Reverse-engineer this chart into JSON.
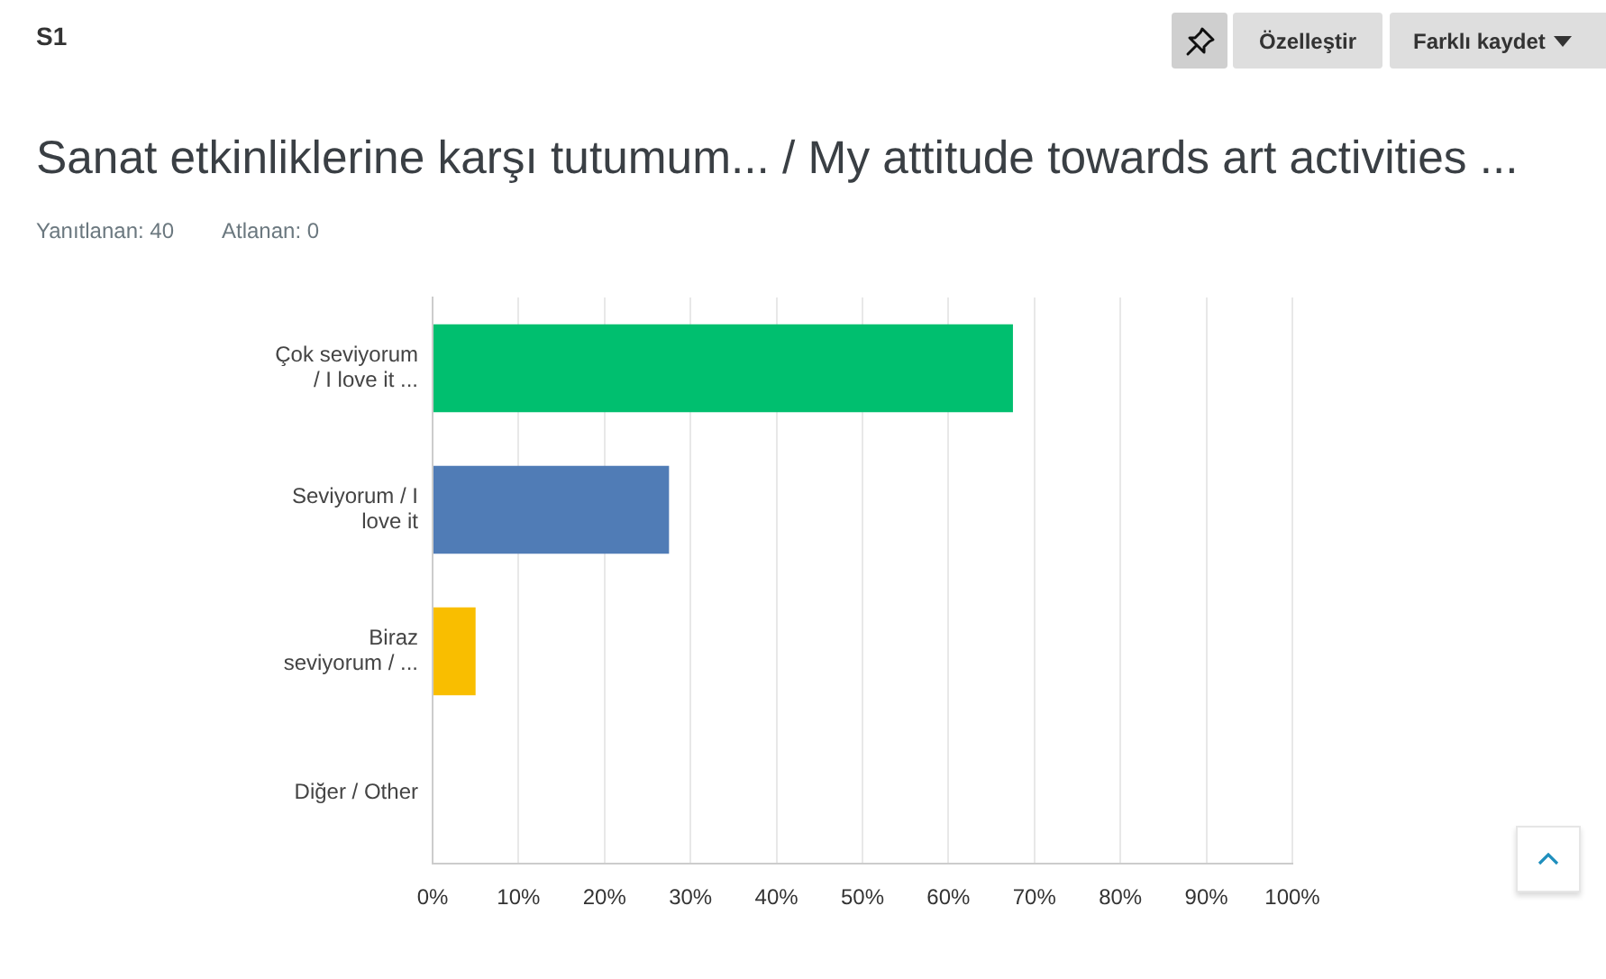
{
  "chart_data": {
    "type": "bar",
    "orientation": "horizontal",
    "title": "Sanat etkinliklerine karşı tutumum... / My attitude towards art activities ...",
    "annotations": [
      "S1",
      "Yanıtlanan: 40",
      "Atlanan: 0",
      "Özelleştir",
      "Farklı kaydet"
    ],
    "categories": [
      "Çok seviyorum / I love it ...",
      "Seviyorum / I love it",
      "Biraz seviyorum / ...",
      "Diğer / Other"
    ],
    "values": [
      67.5,
      27.5,
      5,
      0
    ],
    "colors": [
      "#00bf6f",
      "#507cb6",
      "#f9be00",
      "#6bc8cd"
    ],
    "xlim": [
      0,
      100
    ],
    "xticks": [
      {
        "value": 0,
        "label": "0%"
      },
      {
        "value": 10,
        "label": "10%"
      },
      {
        "value": 20,
        "label": "20%"
      },
      {
        "value": 30,
        "label": "30%"
      },
      {
        "value": 40,
        "label": "40%"
      },
      {
        "value": 50,
        "label": "50%"
      },
      {
        "value": 60,
        "label": "60%"
      },
      {
        "value": 70,
        "label": "70%"
      },
      {
        "value": 80,
        "label": "80%"
      },
      {
        "value": 90,
        "label": "90%"
      },
      {
        "value": 100,
        "label": "100%"
      }
    ],
    "grid": "x"
  }
}
